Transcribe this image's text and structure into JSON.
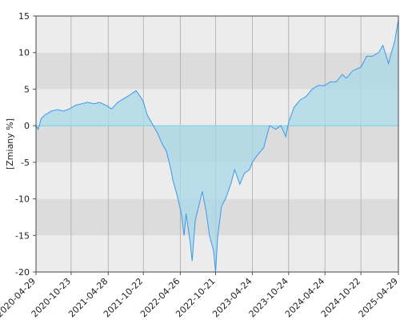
{
  "chart_data": {
    "type": "area",
    "ylabel": "[Zmiany %]",
    "x": [
      "2020-04-29",
      "2020-05-10",
      "2020-05-25",
      "2020-06-15",
      "2020-07-15",
      "2020-08-15",
      "2020-09-15",
      "2020-10-15",
      "2020-11-15",
      "2020-12-15",
      "2021-01-15",
      "2021-02-15",
      "2021-03-15",
      "2021-04-15",
      "2021-05-15",
      "2021-06-15",
      "2021-07-15",
      "2021-08-15",
      "2021-09-15",
      "2021-10-01",
      "2021-10-22",
      "2021-11-10",
      "2021-12-01",
      "2022-01-01",
      "2022-01-25",
      "2022-02-15",
      "2022-03-10",
      "2022-03-20",
      "2022-04-10",
      "2022-05-01",
      "2022-05-15",
      "2022-05-25",
      "2022-06-15",
      "2022-06-25",
      "2022-07-10",
      "2022-08-15",
      "2022-09-05",
      "2022-09-20",
      "2022-10-10",
      "2022-10-21",
      "2022-11-01",
      "2022-11-20",
      "2022-12-10",
      "2023-01-05",
      "2023-01-25",
      "2023-02-20",
      "2023-03-15",
      "2023-04-10",
      "2023-04-24",
      "2023-05-20",
      "2023-06-20",
      "2023-07-20",
      "2023-08-20",
      "2023-09-15",
      "2023-10-10",
      "2023-10-24",
      "2023-11-20",
      "2023-12-20",
      "2024-01-20",
      "2024-02-20",
      "2024-03-20",
      "2024-04-24",
      "2024-05-20",
      "2024-06-20",
      "2024-07-20",
      "2024-08-10",
      "2024-09-10",
      "2024-10-22",
      "2024-11-20",
      "2024-12-20",
      "2025-01-20",
      "2025-02-10",
      "2025-03-10",
      "2025-03-25",
      "2025-04-10",
      "2025-04-29"
    ],
    "values": [
      0,
      -0.5,
      1,
      1.5,
      2,
      2.2,
      2,
      2.3,
      2.8,
      3,
      3.2,
      3,
      3.2,
      2.8,
      2.3,
      3.2,
      3.7,
      4.2,
      4.8,
      4.2,
      3.3,
      1.5,
      0.5,
      -1,
      -2.5,
      -3.5,
      -6,
      -7.5,
      -9.5,
      -12,
      -15,
      -12,
      -16,
      -18.5,
      -13,
      -9,
      -12,
      -15,
      -17,
      -20,
      -15,
      -11,
      -10,
      -8,
      -6,
      -8,
      -6.5,
      -6,
      -5,
      -4,
      -3,
      0,
      -0.5,
      0,
      -1.5,
      0.5,
      2.5,
      3.5,
      4,
      5,
      5.5,
      5.5,
      6,
      6,
      7,
      6.5,
      7.5,
      8,
      9.5,
      9.5,
      10,
      11,
      8.5,
      10,
      11.5,
      14.5
    ],
    "color": "#3d98e8",
    "fill_color": "#a9d8ea",
    "xlim": [
      "2020-04-29",
      "2025-04-29"
    ],
    "xticks": [
      "2020-04-29",
      "2020-10-23",
      "2021-04-28",
      "2021-10-22",
      "2022-04-26",
      "2022-10-21",
      "2023-04-24",
      "2023-10-24",
      "2024-04-24",
      "2024-10-22",
      "2025-04-29"
    ],
    "ylim": [
      -20,
      15
    ],
    "yticks": [
      -20,
      -15,
      -10,
      -5,
      0,
      5,
      10,
      15
    ],
    "grid": true
  }
}
